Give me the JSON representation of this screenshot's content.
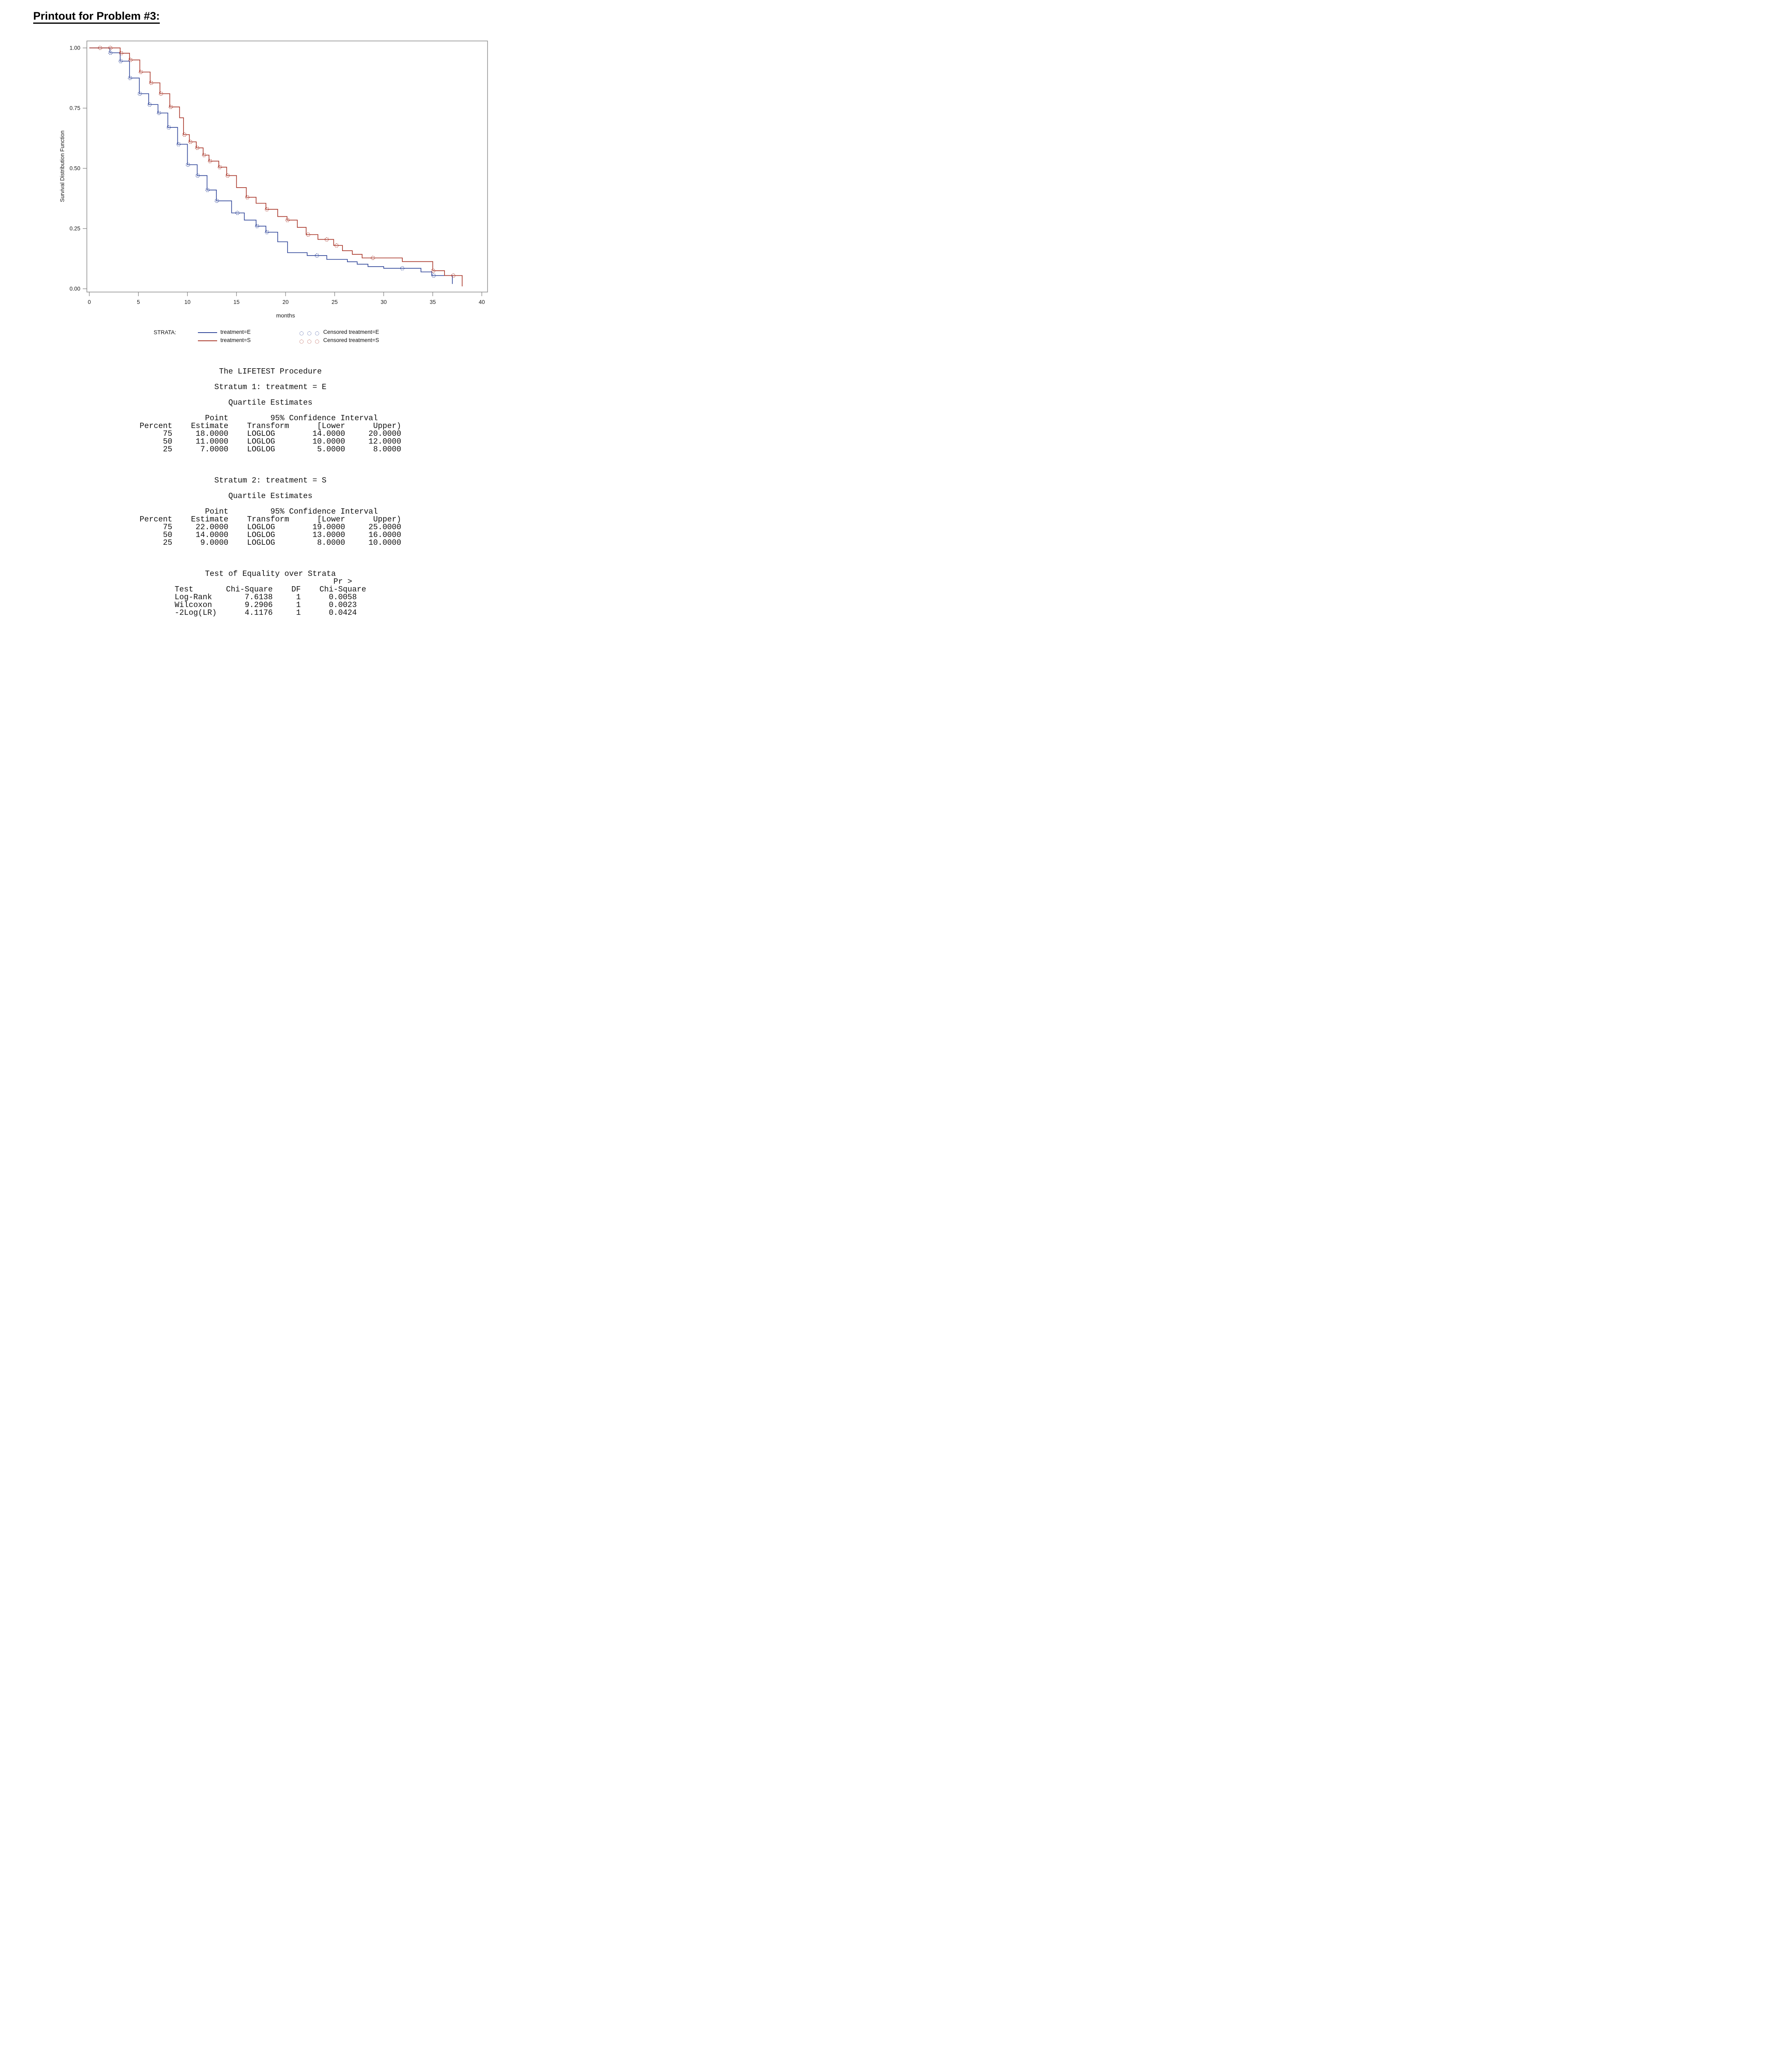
{
  "page_title": "Printout for Problem #3:",
  "chart_data": {
    "type": "line",
    "variant": "kaplan_meier_step_survival",
    "title": "",
    "xlabel": "months",
    "ylabel": "Survival Distribution Function",
    "xlim": [
      0,
      40
    ],
    "ylim": [
      0.0,
      1.0
    ],
    "xticks": [
      0,
      5,
      10,
      15,
      20,
      25,
      30,
      35,
      40
    ],
    "ytick_labels": [
      "0.00",
      "0.25",
      "0.50",
      "0.75",
      "1.00"
    ],
    "grid": false,
    "legend_position": "bottom",
    "series": [
      {
        "name": "treatment=E",
        "color": "#33499B",
        "steps": [
          [
            0,
            1.0
          ],
          [
            2.1,
            0.98
          ],
          [
            3.15,
            0.945
          ],
          [
            4.1,
            0.875
          ],
          [
            5.1,
            0.81
          ],
          [
            6.05,
            0.765
          ],
          [
            7.0,
            0.73
          ],
          [
            8.0,
            0.67
          ],
          [
            9.0,
            0.6
          ],
          [
            10.0,
            0.515
          ],
          [
            11.0,
            0.47
          ],
          [
            12.0,
            0.41
          ],
          [
            12.95,
            0.365
          ],
          [
            14.5,
            0.315
          ],
          [
            15.8,
            0.285
          ],
          [
            17.0,
            0.26
          ],
          [
            18.0,
            0.235
          ],
          [
            19.2,
            0.195
          ],
          [
            20.2,
            0.15
          ],
          [
            22.2,
            0.138
          ],
          [
            24.2,
            0.122
          ],
          [
            26.3,
            0.112
          ],
          [
            27.3,
            0.102
          ],
          [
            28.4,
            0.092
          ],
          [
            30.0,
            0.085
          ],
          [
            33.8,
            0.07
          ],
          [
            34.9,
            0.055
          ],
          [
            37.0,
            0.02
          ]
        ],
        "censored": [
          [
            2.15,
            0.98
          ],
          [
            3.2,
            0.945
          ],
          [
            4.15,
            0.875
          ],
          [
            5.15,
            0.81
          ],
          [
            6.15,
            0.765
          ],
          [
            7.1,
            0.73
          ],
          [
            8.1,
            0.67
          ],
          [
            9.1,
            0.6
          ],
          [
            10.05,
            0.515
          ],
          [
            11.05,
            0.47
          ],
          [
            12.05,
            0.41
          ],
          [
            13.0,
            0.365
          ],
          [
            15.1,
            0.315
          ],
          [
            17.1,
            0.26
          ],
          [
            18.1,
            0.235
          ],
          [
            23.2,
            0.138
          ],
          [
            31.9,
            0.085
          ],
          [
            35.1,
            0.055
          ]
        ]
      },
      {
        "name": "treatment=S",
        "color": "#AA392C",
        "steps": [
          [
            0,
            1.0
          ],
          [
            3.15,
            0.978
          ],
          [
            4.1,
            0.95
          ],
          [
            5.15,
            0.9
          ],
          [
            6.2,
            0.855
          ],
          [
            7.2,
            0.81
          ],
          [
            8.2,
            0.755
          ],
          [
            9.2,
            0.71
          ],
          [
            9.6,
            0.64
          ],
          [
            10.2,
            0.61
          ],
          [
            10.9,
            0.585
          ],
          [
            11.6,
            0.555
          ],
          [
            12.2,
            0.53
          ],
          [
            13.2,
            0.505
          ],
          [
            14.0,
            0.47
          ],
          [
            15.0,
            0.42
          ],
          [
            16.0,
            0.38
          ],
          [
            17.0,
            0.355
          ],
          [
            18.0,
            0.33
          ],
          [
            19.2,
            0.3
          ],
          [
            20.15,
            0.285
          ],
          [
            21.2,
            0.255
          ],
          [
            22.1,
            0.225
          ],
          [
            23.3,
            0.205
          ],
          [
            24.9,
            0.18
          ],
          [
            25.8,
            0.158
          ],
          [
            26.8,
            0.143
          ],
          [
            27.8,
            0.128
          ],
          [
            31.9,
            0.113
          ],
          [
            35.0,
            0.075
          ],
          [
            36.2,
            0.055
          ],
          [
            38.0,
            0.01
          ]
        ],
        "censored": [
          [
            1.1,
            1.0
          ],
          [
            2.15,
            1.0
          ],
          [
            3.25,
            0.978
          ],
          [
            4.2,
            0.95
          ],
          [
            5.25,
            0.9
          ],
          [
            6.3,
            0.855
          ],
          [
            7.3,
            0.81
          ],
          [
            8.3,
            0.755
          ],
          [
            9.7,
            0.64
          ],
          [
            10.3,
            0.61
          ],
          [
            11.0,
            0.585
          ],
          [
            11.7,
            0.555
          ],
          [
            12.3,
            0.53
          ],
          [
            13.3,
            0.505
          ],
          [
            14.1,
            0.47
          ],
          [
            16.1,
            0.38
          ],
          [
            18.1,
            0.33
          ],
          [
            20.2,
            0.285
          ],
          [
            22.3,
            0.225
          ],
          [
            24.2,
            0.205
          ],
          [
            25.2,
            0.18
          ],
          [
            28.9,
            0.128
          ],
          [
            35.05,
            0.075
          ],
          [
            37.1,
            0.055
          ]
        ]
      }
    ]
  },
  "legend": {
    "prefix": "STRATA:",
    "line_entries": [
      {
        "label": "treatment=E"
      },
      {
        "label": "treatment=S"
      }
    ],
    "censored_entries": [
      {
        "label": "Censored treatment=E"
      },
      {
        "label": "Censored treatment=S"
      }
    ]
  },
  "lifetest": {
    "procedure_title": "The LIFETEST Procedure",
    "strata": [
      {
        "stratum_title": "Stratum 1: treatment = E",
        "table_title": "Quartile Estimates",
        "point_label": "Point",
        "ci_label": "95% Confidence Interval",
        "columns": [
          "Percent",
          "Estimate",
          "Transform",
          "[Lower",
          "Upper)"
        ],
        "rows": [
          [
            "75",
            "18.0000",
            "LOGLOG",
            "14.0000",
            "20.0000"
          ],
          [
            "50",
            "11.0000",
            "LOGLOG",
            "10.0000",
            "12.0000"
          ],
          [
            "25",
            "7.0000",
            "LOGLOG",
            "5.0000",
            "8.0000"
          ]
        ]
      },
      {
        "stratum_title": "Stratum 2: treatment = S",
        "table_title": "Quartile Estimates",
        "point_label": "Point",
        "ci_label": "95% Confidence Interval",
        "columns": [
          "Percent",
          "Estimate",
          "Transform",
          "[Lower",
          "Upper)"
        ],
        "rows": [
          [
            "75",
            "22.0000",
            "LOGLOG",
            "19.0000",
            "25.0000"
          ],
          [
            "50",
            "14.0000",
            "LOGLOG",
            "13.0000",
            "16.0000"
          ],
          [
            "25",
            "9.0000",
            "LOGLOG",
            "8.0000",
            "10.0000"
          ]
        ]
      }
    ],
    "equality_test": {
      "title": "Test of Equality over Strata",
      "columns": [
        "Test",
        "Chi-Square",
        "DF",
        "Pr > Chi-Square"
      ],
      "rows": [
        [
          "Log-Rank",
          "7.6138",
          "1",
          "0.0058"
        ],
        [
          "Wilcoxon",
          "9.2906",
          "1",
          "0.0023"
        ],
        [
          "-2Log(LR)",
          "4.1176",
          "1",
          "0.0424"
        ]
      ]
    }
  },
  "listing": {
    "blocks": [
      {
        "title": "The LIFETEST Procedure"
      },
      {
        "gap": 1
      },
      {
        "title": "Stratum 1: treatment = E"
      },
      {
        "gap": 1
      },
      {
        "title": "Quartile Estimates"
      },
      {
        "gap": 1
      },
      {
        "table": [
          "              Point         95% Confidence Interval",
          "Percent    Estimate    Transform      [Lower      Upper)",
          "     75     18.0000    LOGLOG        14.0000     20.0000",
          "     50     11.0000    LOGLOG        10.0000     12.0000",
          "     25      7.0000    LOGLOG         5.0000      8.0000"
        ]
      },
      {
        "gap": 3
      },
      {
        "title": "Stratum 2: treatment = S"
      },
      {
        "gap": 1
      },
      {
        "title": "Quartile Estimates"
      },
      {
        "gap": 1
      },
      {
        "table": [
          "              Point         95% Confidence Interval",
          "Percent    Estimate    Transform      [Lower      Upper)",
          "     75     22.0000    LOGLOG        19.0000     25.0000",
          "     50     14.0000    LOGLOG        13.0000     16.0000",
          "     25      9.0000    LOGLOG         8.0000     10.0000"
        ]
      },
      {
        "gap": 3
      },
      {
        "title": "Test of Equality over Strata"
      },
      {
        "table": [
          "                                  Pr >",
          "Test       Chi-Square    DF    Chi-Square",
          "Log-Rank       7.6138     1      0.0058",
          "Wilcoxon       9.2906     1      0.0023",
          "-2Log(LR)      4.1176     1      0.0424"
        ]
      }
    ]
  }
}
